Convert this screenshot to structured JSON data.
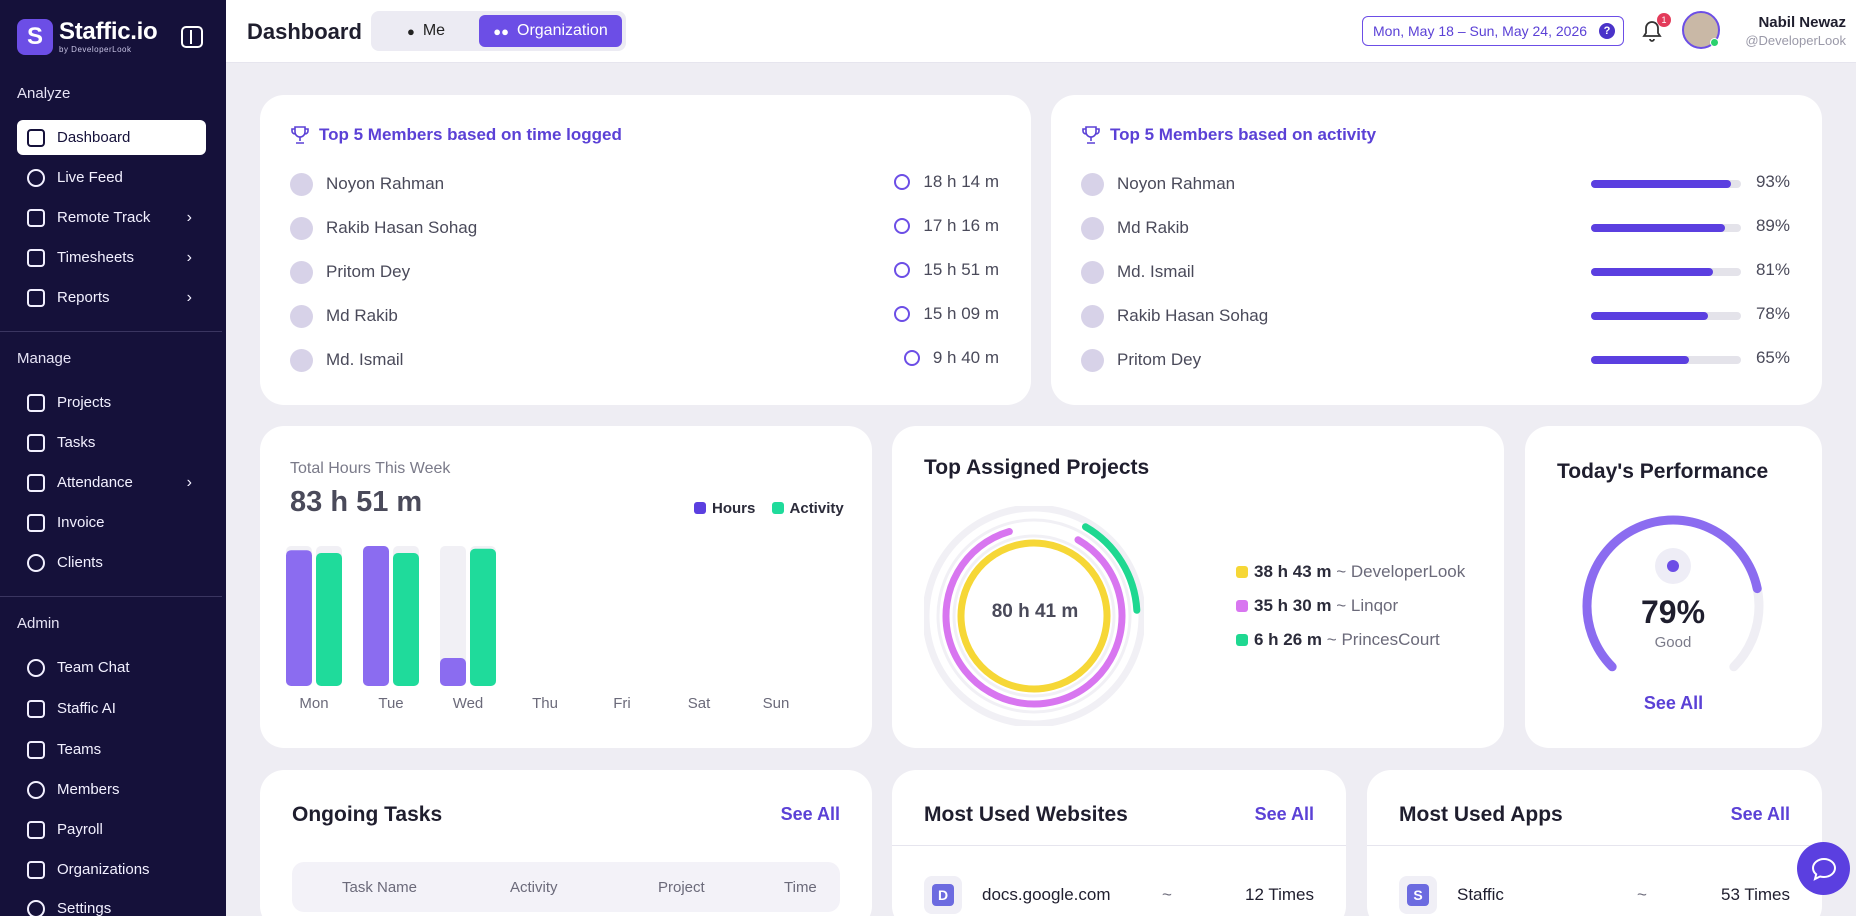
{
  "app": {
    "name": "Staffic.io",
    "sub": "by DeveloperLook"
  },
  "sidebar": {
    "sections": [
      "Analyze",
      "Manage",
      "Admin"
    ],
    "analyze": [
      "Dashboard",
      "Live Feed",
      "Remote Track",
      "Timesheets",
      "Reports"
    ],
    "manage": [
      "Projects",
      "Tasks",
      "Attendance",
      "Invoice",
      "Clients"
    ],
    "admin": [
      "Team Chat",
      "Staffic AI",
      "Teams",
      "Members",
      "Payroll",
      "Organizations",
      "Settings"
    ]
  },
  "header": {
    "title": "Dashboard",
    "toggle_me": "Me",
    "toggle_org": "Organization",
    "date_range": "Mon, May 18 – Sun, May 24, 2026",
    "help": "?",
    "notif_count": "1",
    "user_name": "Nabil Newaz",
    "user_handle": "@DeveloperLook"
  },
  "top_time": {
    "title": "Top 5 Members based on time logged",
    "members": [
      {
        "name": "Noyon Rahman",
        "time": "18 h 14 m"
      },
      {
        "name": "Rakib Hasan Sohag",
        "time": "17 h 16 m"
      },
      {
        "name": "Pritom Dey",
        "time": "15 h 51 m"
      },
      {
        "name": "Md Rakib",
        "time": "15 h 09 m"
      },
      {
        "name": "Md. Ismail",
        "time": "9 h 40 m"
      }
    ]
  },
  "top_activity": {
    "title": "Top 5 Members based on activity",
    "members": [
      {
        "name": "Noyon Rahman",
        "pct": "93%",
        "value": 0.93
      },
      {
        "name": "Md Rakib",
        "pct": "89%",
        "value": 0.89
      },
      {
        "name": "Md. Ismail",
        "pct": "81%",
        "value": 0.81
      },
      {
        "name": "Rakib Hasan Sohag",
        "pct": "78%",
        "value": 0.78
      },
      {
        "name": "Pritom Dey",
        "pct": "65%",
        "value": 0.65
      }
    ]
  },
  "hours": {
    "label": "Total Hours This Week",
    "total": "83 h 51 m",
    "legend_hours": "Hours",
    "legend_activity": "Activity"
  },
  "chart_data": {
    "type": "bar",
    "categories": [
      "Mon",
      "Tue",
      "Wed",
      "Thu",
      "Fri",
      "Sat",
      "Sun"
    ],
    "series": [
      {
        "name": "Hours",
        "values": [
          0.97,
          1.0,
          0.2,
          0,
          0,
          0,
          0
        ]
      },
      {
        "name": "Activity",
        "values": [
          0.95,
          0.95,
          0.98,
          0,
          0,
          0,
          0
        ]
      }
    ],
    "ylim": [
      0,
      1
    ],
    "colors": {
      "hours": "#8b6cf0",
      "activity": "#1fdb9b",
      "track": "#f1f0f5"
    }
  },
  "projects": {
    "title": "Top Assigned Projects",
    "center": "80 h 41 m",
    "items": [
      {
        "time": "38 h 43 m",
        "sep": "~",
        "name": "DeveloperLook",
        "color": "#f6d736",
        "fraction": 1.0
      },
      {
        "time": "35 h 30 m",
        "sep": "~",
        "name": "Linqor",
        "color": "#d876f0",
        "fraction": 0.917
      },
      {
        "time": "6 h 26 m",
        "sep": "~",
        "name": "PrincesCourt",
        "color": "#1fd891",
        "fraction": 0.166
      }
    ]
  },
  "performance": {
    "title": "Today's Performance",
    "value": "79%",
    "fraction": 0.79,
    "label": "Good",
    "see_all": "See All"
  },
  "tasks": {
    "title": "Ongoing Tasks",
    "see_all": "See All",
    "columns": [
      "Task Name",
      "Activity",
      "Project",
      "Time"
    ]
  },
  "websites": {
    "title": "Most Used Websites",
    "see_all": "See All",
    "items": [
      {
        "icon": "D",
        "name": "docs.google.com",
        "sep": "~",
        "count": "12 Times"
      }
    ]
  },
  "apps": {
    "title": "Most Used Apps",
    "see_all": "See All",
    "items": [
      {
        "icon": "S",
        "name": "Staffic",
        "sep": "~",
        "count": "53 Times"
      }
    ]
  }
}
